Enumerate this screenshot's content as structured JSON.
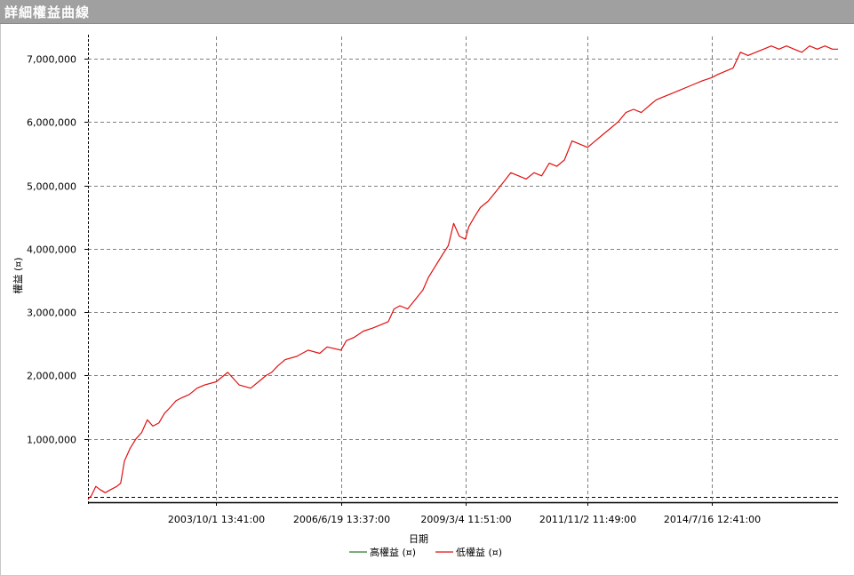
{
  "window": {
    "title": "詳細權益曲線"
  },
  "chart_data": {
    "type": "line",
    "xlabel": "日期",
    "ylabel": "權益 (¤)",
    "x_tick_labels": [
      "2003/10/1 13:41:00",
      "2006/6/19 13:37:00",
      "2009/3/4 11:51:00",
      "2011/11/2 11:49:00",
      "2014/7/16 12:41:00"
    ],
    "y_tick_labels": [
      "1,000,000",
      "2,000,000",
      "3,000,000",
      "4,000,000",
      "5,000,000",
      "6,000,000",
      "7,000,000"
    ],
    "y_ticks": [
      1000000,
      2000000,
      3000000,
      4000000,
      5000000,
      6000000,
      7000000
    ],
    "x_ticks": [
      "2003-10-01",
      "2006-06-19",
      "2009-03-04",
      "2011-11-02",
      "2014-07-16"
    ],
    "xlim": [
      "2000-12-15",
      "2017-04-15"
    ],
    "ylim": [
      0,
      7350000
    ],
    "grid": true,
    "legend_position": "bottom-center",
    "series": [
      {
        "name": "高權益 (¤)",
        "color": "#2a7a2a",
        "x": [],
        "y": []
      },
      {
        "name": "低權益 (¤)",
        "color": "#e01010",
        "x": [
          "2000-12-15",
          "2001-01-10",
          "2001-02-15",
          "2001-03-20",
          "2001-05-01",
          "2001-06-15",
          "2001-08-01",
          "2001-09-01",
          "2001-10-01",
          "2001-11-15",
          "2002-01-01",
          "2002-02-15",
          "2002-04-01",
          "2002-05-15",
          "2002-07-01",
          "2002-08-15",
          "2002-10-01",
          "2002-11-15",
          "2003-01-01",
          "2003-03-01",
          "2003-05-01",
          "2003-07-01",
          "2003-10-01",
          "2004-01-01",
          "2004-04-01",
          "2004-07-01",
          "2004-09-01",
          "2004-11-01",
          "2004-12-15",
          "2005-02-01",
          "2005-04-01",
          "2005-07-01",
          "2005-10-01",
          "2006-01-01",
          "2006-03-01",
          "2006-06-19",
          "2006-08-01",
          "2006-10-01",
          "2006-12-15",
          "2007-03-01",
          "2007-05-01",
          "2007-07-01",
          "2007-08-15",
          "2007-10-01",
          "2007-12-01",
          "2008-02-01",
          "2008-04-01",
          "2008-05-15",
          "2008-07-01",
          "2008-09-01",
          "2008-10-20",
          "2008-12-01",
          "2009-01-15",
          "2009-03-04",
          "2009-04-01",
          "2009-05-15",
          "2009-07-01",
          "2009-09-01",
          "2009-11-01",
          "2010-01-01",
          "2010-03-01",
          "2010-05-01",
          "2010-07-01",
          "2010-09-01",
          "2010-11-01",
          "2011-01-01",
          "2011-03-01",
          "2011-05-01",
          "2011-07-01",
          "2011-09-01",
          "2011-11-02",
          "2012-01-01",
          "2012-03-01",
          "2012-05-01",
          "2012-07-01",
          "2012-09-01",
          "2012-11-01",
          "2013-01-01",
          "2013-03-01",
          "2013-05-01",
          "2013-07-01",
          "2013-09-01",
          "2013-11-01",
          "2014-01-01",
          "2014-03-01",
          "2014-05-01",
          "2014-07-16",
          "2014-09-01",
          "2014-11-01",
          "2015-01-01",
          "2015-03-01",
          "2015-05-01",
          "2015-07-01",
          "2015-09-01",
          "2015-11-01",
          "2016-01-01",
          "2016-03-01",
          "2016-05-01",
          "2016-07-01",
          "2016-09-01",
          "2016-11-01",
          "2017-01-01",
          "2017-03-01",
          "2017-04-15"
        ],
        "y": [
          50000,
          100000,
          250000,
          200000,
          150000,
          200000,
          250000,
          300000,
          650000,
          850000,
          1000000,
          1100000,
          1300000,
          1200000,
          1250000,
          1400000,
          1500000,
          1600000,
          1650000,
          1700000,
          1800000,
          1850000,
          1900000,
          2050000,
          1850000,
          1800000,
          1900000,
          2000000,
          2050000,
          2150000,
          2250000,
          2300000,
          2400000,
          2350000,
          2450000,
          2400000,
          2550000,
          2600000,
          2700000,
          2750000,
          2800000,
          2850000,
          3050000,
          3100000,
          3050000,
          3200000,
          3350000,
          3550000,
          3700000,
          3900000,
          4050000,
          4400000,
          4200000,
          4150000,
          4350000,
          4500000,
          4650000,
          4750000,
          4900000,
          5050000,
          5200000,
          5150000,
          5100000,
          5200000,
          5150000,
          5350000,
          5300000,
          5400000,
          5700000,
          5650000,
          5600000,
          5700000,
          5800000,
          5900000,
          6000000,
          6150000,
          6200000,
          6150000,
          6250000,
          6350000,
          6400000,
          6450000,
          6500000,
          6550000,
          6600000,
          6650000,
          6700000,
          6750000,
          6800000,
          6850000,
          7100000,
          7050000,
          7100000,
          7150000,
          7200000,
          7150000,
          7200000,
          7150000,
          7100000,
          7200000,
          7150000,
          7200000,
          7150000,
          7150000
        ]
      }
    ]
  }
}
